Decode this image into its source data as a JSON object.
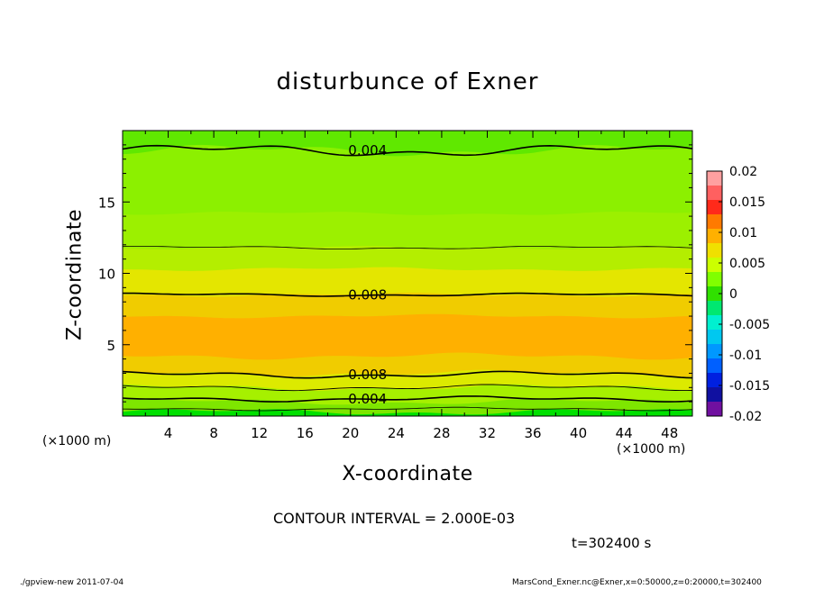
{
  "chart_data": {
    "type": "heatmap",
    "title": "disturbunce of Exner",
    "xlabel": "X-coordinate",
    "ylabel": "Z-coordinate",
    "x_unit": "(×1000 m)",
    "xlim": [
      0,
      50
    ],
    "ylim": [
      0,
      20
    ],
    "x_ticks": [
      4,
      8,
      12,
      16,
      20,
      24,
      28,
      32,
      36,
      40,
      44,
      48
    ],
    "y_ticks": [
      5,
      10,
      15
    ],
    "colorbar": {
      "ticks": [
        "0.02",
        "0.015",
        "0.01",
        "0.005",
        "0",
        "-0.005",
        "-0.01",
        "-0.015",
        "-0.02"
      ],
      "colors": [
        "#ffa0a0",
        "#ff6060",
        "#ff2a1a",
        "#ff7a00",
        "#ffb000",
        "#f0e000",
        "#ccff00",
        "#80ff00",
        "#30e000",
        "#00e870",
        "#00f0d0",
        "#00c8f0",
        "#0098ff",
        "#0060ff",
        "#0020e0",
        "#1010a0",
        "#7010a0"
      ]
    },
    "bands": [
      {
        "value": 0.0055,
        "color": "#00e000",
        "z_top": 0.3
      },
      {
        "value": 0.006,
        "color": "#7ee600",
        "z_top": 1.0
      },
      {
        "value": 0.0065,
        "color": "#a6f000",
        "z_top": 2.0
      },
      {
        "value": 0.0075,
        "color": "#dcea00",
        "z_top": 3.0
      },
      {
        "value": 0.0085,
        "color": "#f0cc00",
        "z_top": 4.2
      },
      {
        "value": 0.009,
        "color": "#ffb000",
        "z_top": 7.0
      },
      {
        "value": 0.0085,
        "color": "#f0cc00",
        "z_top": 8.5
      },
      {
        "value": 0.0075,
        "color": "#e4e600",
        "z_top": 10.3
      },
      {
        "value": 0.0065,
        "color": "#b4ee00",
        "z_top": 11.8
      },
      {
        "value": 0.006,
        "color": "#9cf000",
        "z_top": 14.2
      },
      {
        "value": 0.005,
        "color": "#8cf000",
        "z_top": 18.6
      },
      {
        "value": 0.004,
        "color": "#60e800",
        "z_top": 20.0
      }
    ],
    "contour_labels": [
      {
        "text": "0.004",
        "x": 21.5,
        "z": 18.6
      },
      {
        "text": "0.008",
        "x": 21.5,
        "z": 8.5
      },
      {
        "text": "0.008",
        "x": 21.5,
        "z": 2.9
      },
      {
        "text": "0.004",
        "x": 21.5,
        "z": 1.2
      }
    ]
  },
  "annotations": {
    "contour_interval": "CONTOUR INTERVAL = 2.000E-03",
    "time": "t=302400 s",
    "footer_left": "./gpview-new   2011-07-04",
    "footer_right": "MarsCond_Exner.nc@Exner,x=0:50000,z=0:20000,t=302400",
    "x_unit_left": "(×1000 m)",
    "x_unit_right": "(×1000 m)"
  }
}
